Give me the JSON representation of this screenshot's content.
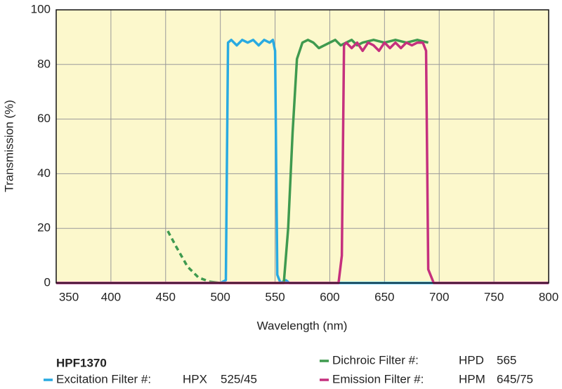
{
  "chart_data": {
    "type": "line",
    "xlabel": "Wavelength (nm)",
    "ylabel": "Transmission (%)",
    "xlim": [
      350,
      800
    ],
    "xticks": [
      350,
      400,
      450,
      500,
      550,
      600,
      650,
      700,
      750,
      800
    ],
    "ylim": [
      0,
      100
    ],
    "yticks": [
      0,
      20,
      40,
      60,
      80,
      100
    ],
    "grid": true,
    "background": "#fcf8cc",
    "legend_title": "HPF1370",
    "series": [
      {
        "name": "Excitation Filter #:",
        "product": "HPX",
        "spec": "525/45",
        "color": "#29aae1",
        "x": [
          350,
          500,
          505,
          507,
          510,
          515,
          520,
          525,
          530,
          535,
          540,
          545,
          548,
          550,
          552,
          555,
          560,
          563,
          800
        ],
        "values": [
          0,
          0,
          1,
          88,
          89,
          87,
          89,
          88,
          89,
          87,
          89,
          88,
          89,
          85,
          3,
          0,
          1,
          0,
          0
        ]
      },
      {
        "name": "Dichroic Filter #:",
        "product": "HPD",
        "spec": "565",
        "color": "#3f9a4f",
        "x": [
          490,
          500,
          550,
          558,
          562,
          566,
          570,
          575,
          580,
          585,
          590,
          595,
          600,
          605,
          610,
          615,
          620,
          625,
          630,
          640,
          650,
          660,
          670,
          680,
          690
        ],
        "values": [
          0.5,
          0,
          0,
          0,
          20,
          55,
          82,
          88,
          89,
          88,
          86,
          87,
          88,
          89,
          87,
          88,
          89,
          87,
          88,
          89,
          88,
          89,
          88,
          89,
          88
        ]
      },
      {
        "color": "#3f9a4f",
        "dashed": true,
        "x": [
          452,
          460,
          470,
          480,
          490
        ],
        "values": [
          19,
          13,
          6,
          2,
          0.5
        ]
      },
      {
        "name": "Emission Filter #:",
        "product": "HPM",
        "spec": "645/75",
        "color": "#c5307e",
        "x": [
          350,
          608,
          611,
          613,
          615,
          620,
          625,
          630,
          635,
          640,
          645,
          650,
          655,
          660,
          665,
          670,
          675,
          680,
          685,
          688,
          690,
          695,
          800
        ],
        "values": [
          0,
          0,
          10,
          87,
          88,
          86,
          88,
          85,
          88,
          87,
          85,
          88,
          86,
          88,
          86,
          88,
          87,
          88,
          88,
          85,
          5,
          0,
          0
        ]
      }
    ]
  }
}
